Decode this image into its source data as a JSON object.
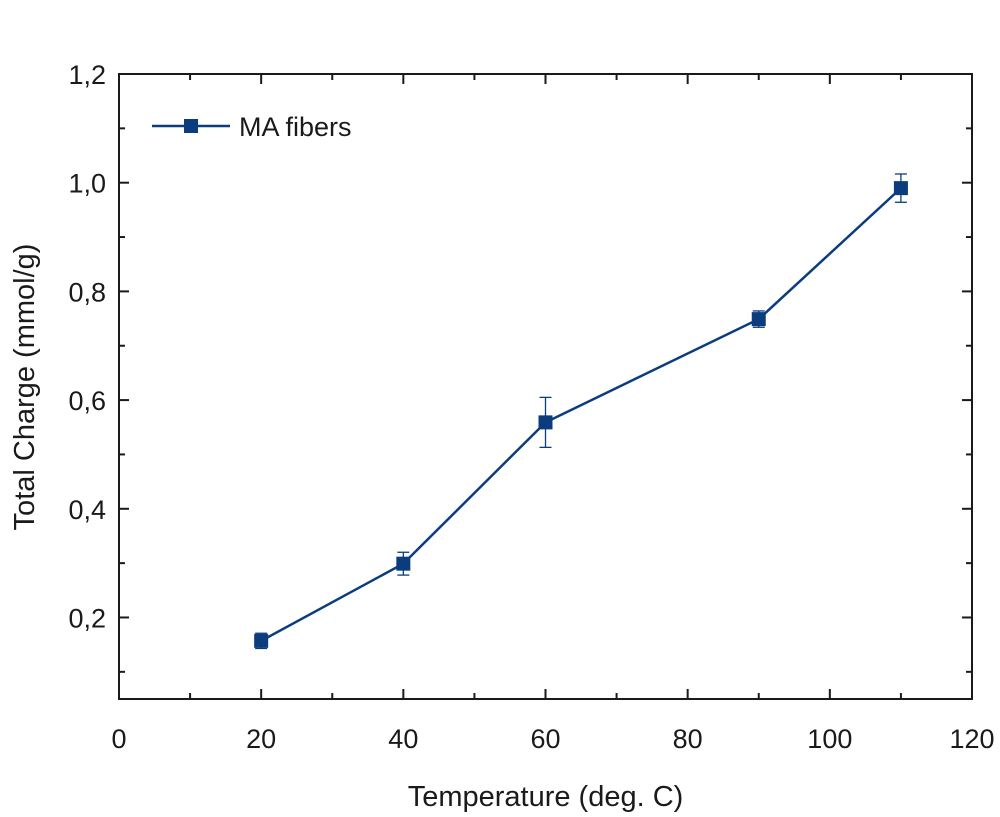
{
  "chart_data": {
    "type": "line",
    "title": "",
    "xlabel": "Temperature (deg. C)",
    "ylabel": "Total Charge (mmol/g)",
    "xlim": [
      0,
      120
    ],
    "ylim": [
      0.05,
      1.2
    ],
    "x_ticks": [
      {
        "value": 0,
        "label": "0"
      },
      {
        "value": 20,
        "label": "20"
      },
      {
        "value": 40,
        "label": "40"
      },
      {
        "value": 60,
        "label": "60"
      },
      {
        "value": 80,
        "label": "80"
      },
      {
        "value": 100,
        "label": "100"
      },
      {
        "value": 120,
        "label": "120"
      }
    ],
    "y_ticks": [
      {
        "value": 0.2,
        "label": "0,2"
      },
      {
        "value": 0.4,
        "label": "0,4"
      },
      {
        "value": 0.6,
        "label": "0,6"
      },
      {
        "value": 0.8,
        "label": "0,8"
      },
      {
        "value": 1.0,
        "label": "1,0"
      },
      {
        "value": 1.2,
        "label": "1,2"
      }
    ],
    "x_minor_step": 10,
    "y_minor_step": 0.1,
    "grid": false,
    "legend_position": "top-left",
    "series": [
      {
        "name": "MA fibers",
        "color": "#0b3d7e",
        "marker": "square",
        "x": [
          20,
          40,
          60,
          90,
          110
        ],
        "y": [
          0.157,
          0.299,
          0.559,
          0.749,
          0.99
        ],
        "error": [
          0.014,
          0.021,
          0.046,
          0.015,
          0.026
        ]
      }
    ]
  }
}
